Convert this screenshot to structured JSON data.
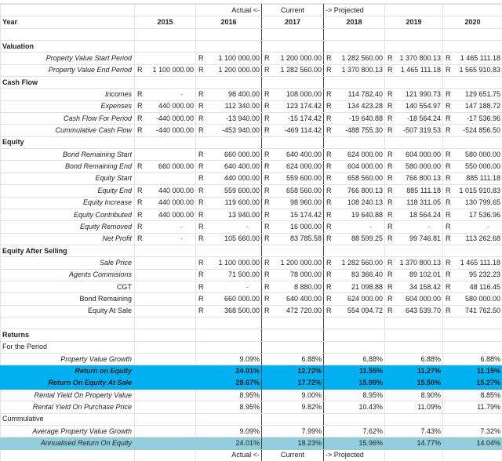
{
  "header": {
    "markers": {
      "actual": "Actual <-",
      "current": "Current",
      "projected": "-> Projected"
    },
    "year_label": "Year",
    "years": [
      "2015",
      "2016",
      "2017",
      "2018",
      "2019",
      "2020"
    ]
  },
  "currency": "R",
  "sections": {
    "valuation": {
      "title": "Valuation",
      "rows": [
        {
          "label": "Property Value Start Period",
          "values": [
            "",
            "1 100 000.00",
            "1 200 000.00",
            "1 282 560.00",
            "1 370 800.13",
            "1 465 111.18"
          ],
          "cur": [
            false,
            true,
            true,
            true,
            true,
            true
          ]
        },
        {
          "label": "Property Value End Period",
          "values": [
            "1 100 000.00",
            "1 200 000.00",
            "1 282 560.00",
            "1 370 800.13",
            "1 465 111.18",
            "1 565 910.83"
          ],
          "cur": [
            true,
            true,
            true,
            true,
            true,
            true
          ]
        }
      ]
    },
    "cash_flow": {
      "title": "Cash Flow",
      "rows": [
        {
          "label": "Incomes",
          "values": [
            "-",
            "98 400.00",
            "108 000.00",
            "114 782.40",
            "121 990.73",
            "129 651.75"
          ]
        },
        {
          "label": "Expenses",
          "values": [
            "440 000.00",
            "112 340.00",
            "123 174.42",
            "134 423.28",
            "140 554.97",
            "147 188.72"
          ]
        },
        {
          "label": "Cash Flow For Period",
          "values": [
            "-440 000.00",
            "-13 940.00",
            "-15 174.42",
            "-19 640.88",
            "-18 564.24",
            "-17 536.96"
          ]
        },
        {
          "label": "Cummulative Cash Flow",
          "values": [
            "-440 000.00",
            "-453 940.00",
            "-469 114.42",
            "-488 755.30",
            "-507 319.53",
            "-524 856.50"
          ]
        }
      ]
    },
    "equity": {
      "title": "Equity",
      "rows": [
        {
          "label": "Bond Remaining Start",
          "values": [
            "",
            "660 000.00",
            "640 400.00",
            "624 000.00",
            "604 000.00",
            "580 000.00"
          ]
        },
        {
          "label": "Bond Remaining End",
          "values": [
            "660 000.00",
            "640 400.00",
            "624 000.00",
            "604 000.00",
            "580 000.00",
            "550 000.00"
          ]
        },
        {
          "label": "Equity Start",
          "values": [
            "",
            "440 000.00",
            "559 600.00",
            "658 560.00",
            "766 800.13",
            "885 111.18"
          ]
        },
        {
          "label": "Equity End",
          "values": [
            "440 000.00",
            "559 600.00",
            "658 560.00",
            "766 800.13",
            "885 111.18",
            "1 015 910.83"
          ]
        },
        {
          "label": "Equity Increase",
          "values": [
            "440 000.00",
            "119 600.00",
            "98 960.00",
            "108 240.13",
            "118 311.05",
            "130 799.65"
          ]
        },
        {
          "label": "Equity Contributed",
          "values": [
            "440 000.00",
            "13 940.00",
            "15 174.42",
            "19 640.88",
            "18 564.24",
            "17 536.96"
          ]
        },
        {
          "label": "Equity Removed",
          "values": [
            "-",
            "-",
            "16 000.00",
            "-",
            "-",
            "-"
          ]
        },
        {
          "label": "Net Profit",
          "values": [
            "-",
            "105 660.00",
            "83 785.58",
            "88 599.25",
            "99 746.81",
            "113 262.68"
          ]
        }
      ]
    },
    "equity_after_selling": {
      "title": "Equity After Selling",
      "rows": [
        {
          "label": "Sale Price",
          "values": [
            "",
            "1 100 000.00",
            "1 200 000.00",
            "1 282 560.00",
            "1 370 800.13",
            "1 465 111.18"
          ]
        },
        {
          "label": "Agents Commisions",
          "values": [
            "",
            "71 500.00",
            "78 000.00",
            "83 366.40",
            "89 102.01",
            "95 232.23"
          ]
        },
        {
          "label": "CGT",
          "values": [
            "",
            "-",
            "8 880.00",
            "21 098.88",
            "34 158.42",
            "48 116.45"
          ]
        },
        {
          "label": "Bond Remaining",
          "values": [
            "",
            "660 000.00",
            "640 400.00",
            "624 000.00",
            "604 000.00",
            "580 000.00"
          ]
        },
        {
          "label": "Equity At Sale",
          "values": [
            "",
            "368 500.00",
            "472 720.00",
            "554 094.72",
            "643 539.70",
            "741 762.50"
          ]
        }
      ]
    },
    "returns": {
      "title": "Returns",
      "for_period_label": "For the Period",
      "period_rows": [
        {
          "label": "Property Value Growth",
          "values": [
            "",
            "9.09%",
            "6.88%",
            "6.88%",
            "6.88%",
            "6.88%"
          ]
        },
        {
          "label": "Return on Equity",
          "values": [
            "",
            "24.01%",
            "12.72%",
            "11.55%",
            "11.27%",
            "11.15%"
          ],
          "highlight": "#00b0f0"
        },
        {
          "label": "Return On Equity At Sale",
          "values": [
            "",
            "28.67%",
            "17.72%",
            "15.99%",
            "15.50%",
            "15.27%"
          ],
          "highlight": "#00b0f0"
        },
        {
          "label": "Rental Yield On Property Value",
          "values": [
            "",
            "8.95%",
            "9.00%",
            "8.95%",
            "8.90%",
            "8.85%"
          ]
        },
        {
          "label": "Rental Yield On Purchase Price",
          "values": [
            "",
            "8.95%",
            "9.82%",
            "10.43%",
            "11.09%",
            "11.79%"
          ]
        }
      ],
      "cumulative_label": "Cummulative",
      "cumulative_rows": [
        {
          "label": "Average Property Value Growth",
          "values": [
            "",
            "9.09%",
            "7.99%",
            "7.62%",
            "7.43%",
            "7.32%"
          ]
        },
        {
          "label": "Annualised Return On Equity",
          "values": [
            "",
            "24.01%",
            "18.23%",
            "15.96%",
            "14.77%",
            "14.04%"
          ],
          "highlight": "#92cddc"
        }
      ]
    }
  },
  "colors": {
    "roe_highlight": "#00b0f0",
    "aroe_highlight": "#92cddc",
    "divider": "#444444"
  }
}
